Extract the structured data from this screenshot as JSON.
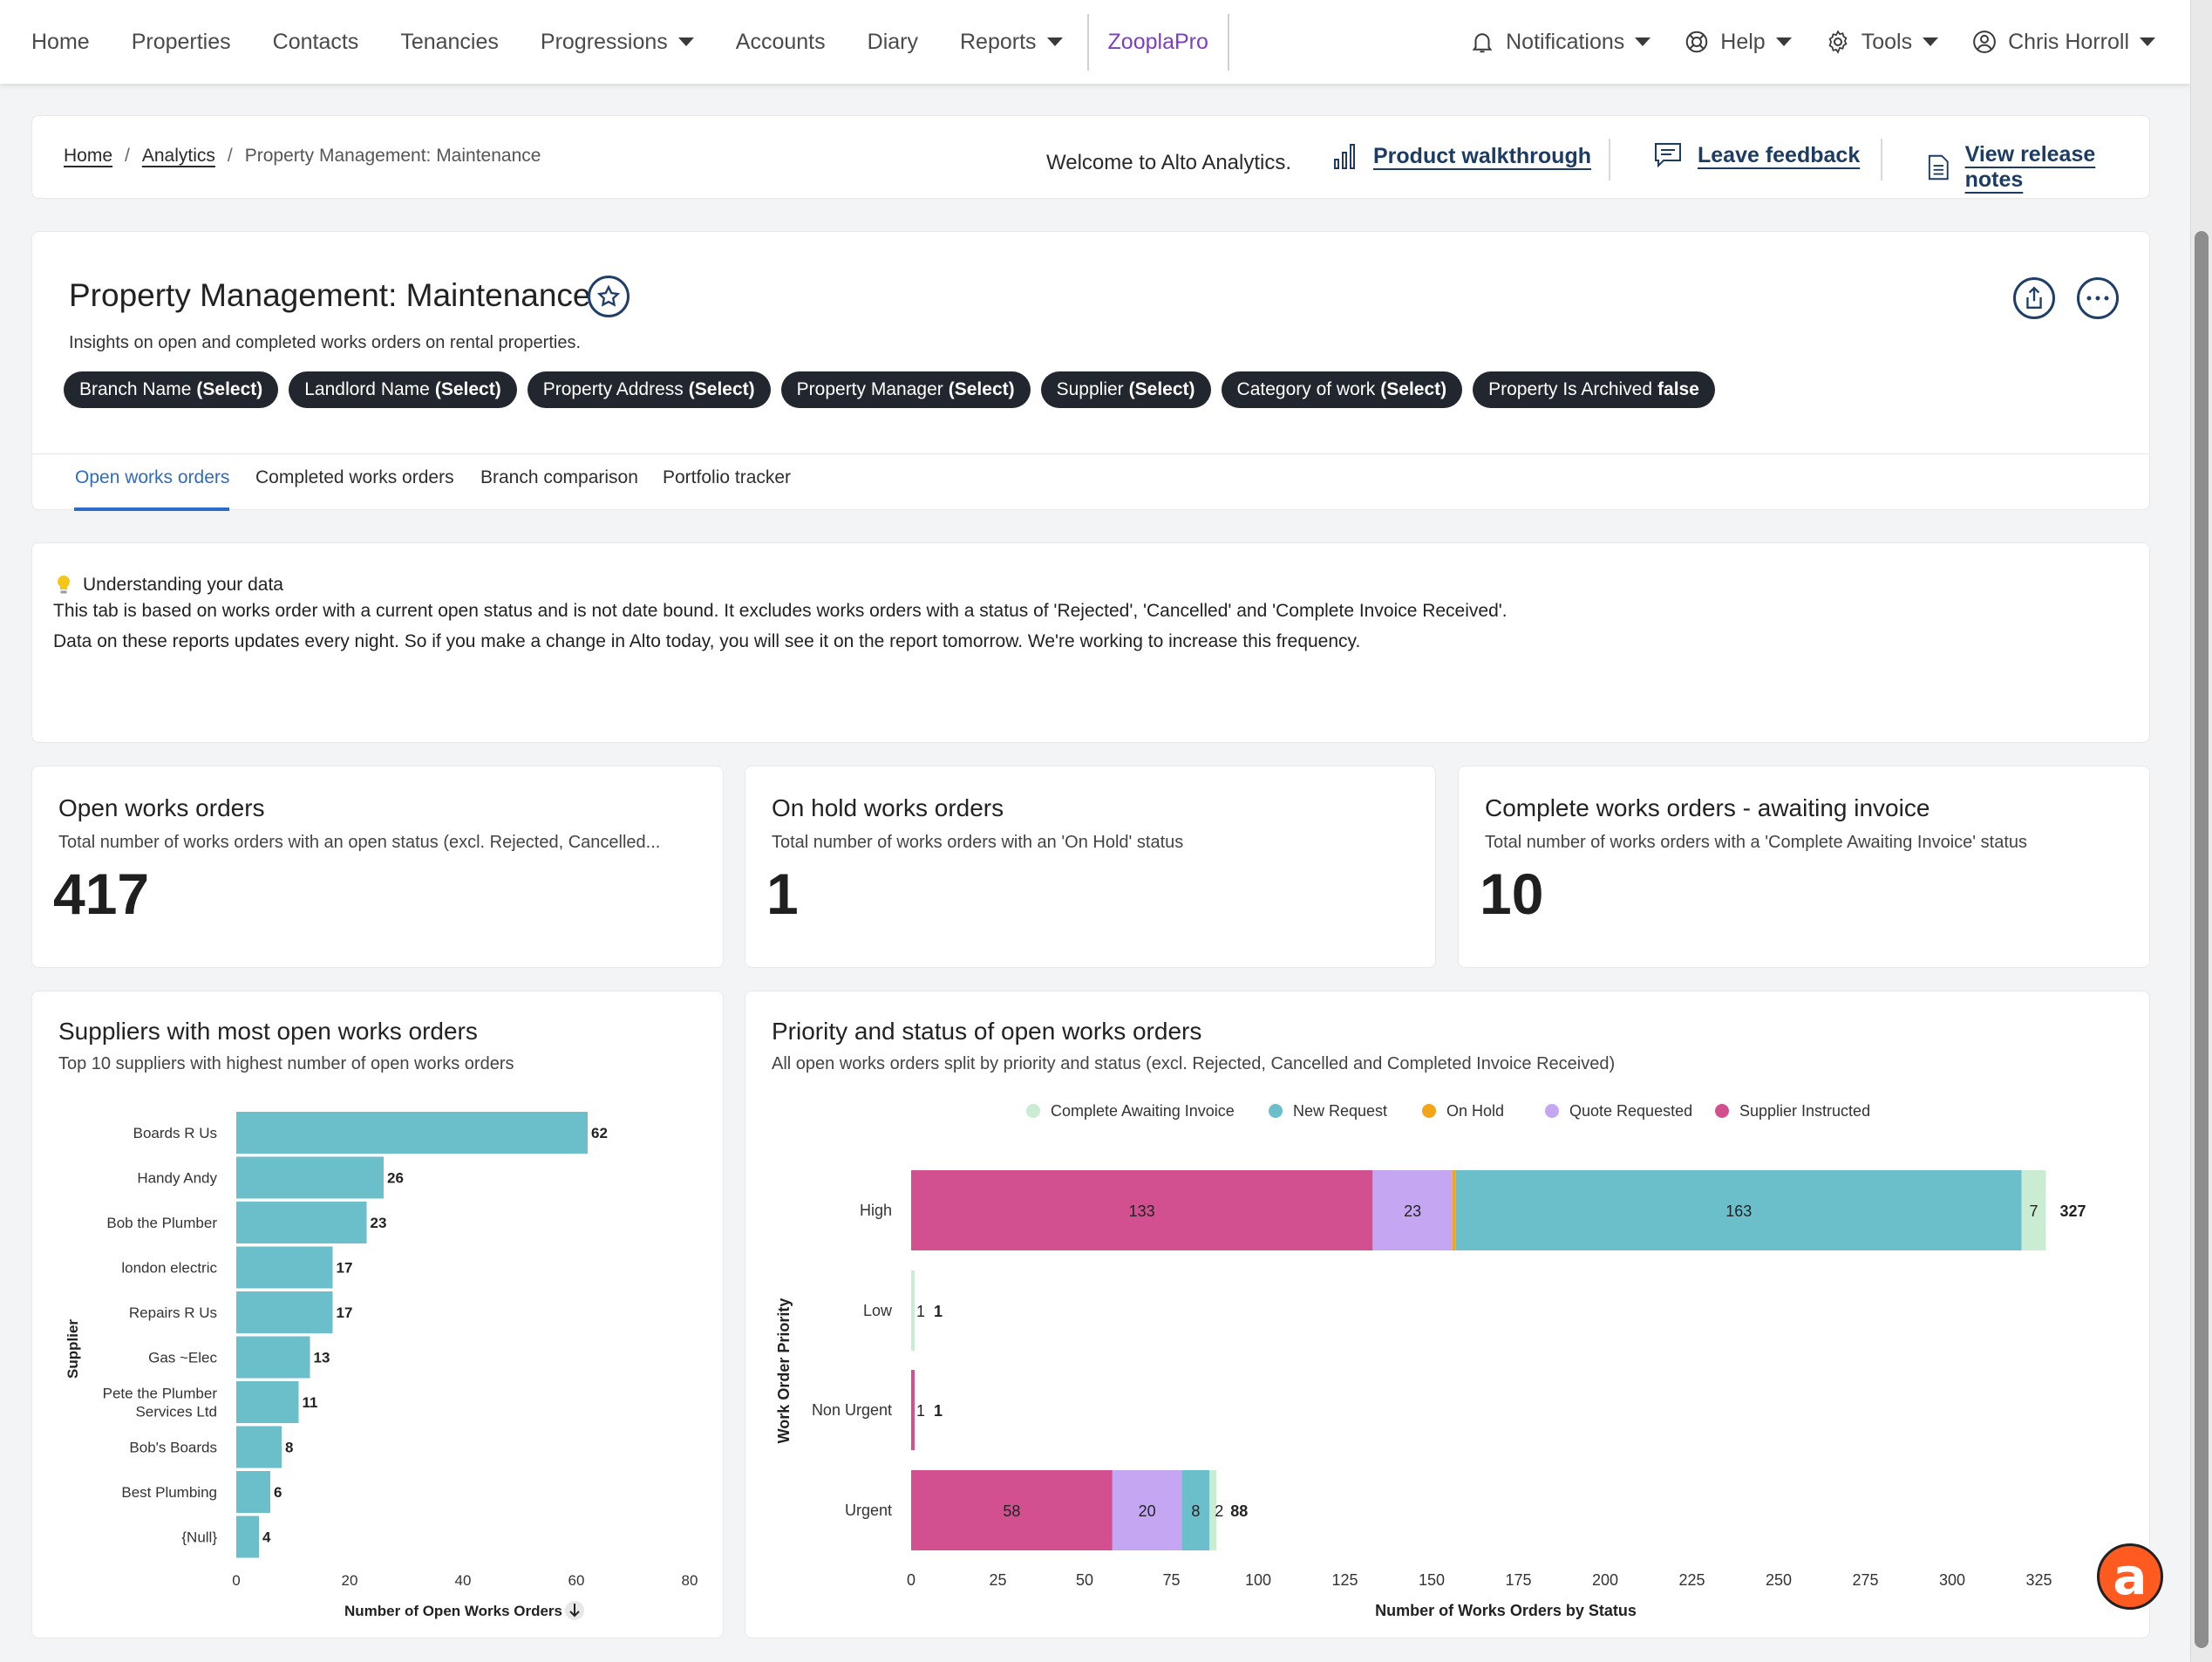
{
  "nav": {
    "items": [
      {
        "label": "Home",
        "caret": false
      },
      {
        "label": "Properties",
        "caret": false
      },
      {
        "label": "Contacts",
        "caret": false
      },
      {
        "label": "Tenancies",
        "caret": false
      },
      {
        "label": "Progressions",
        "caret": true
      },
      {
        "label": "Accounts",
        "caret": false
      },
      {
        "label": "Diary",
        "caret": false
      },
      {
        "label": "Reports",
        "caret": true
      }
    ],
    "zoopla": "ZooplaPro",
    "right": {
      "notifications": "Notifications",
      "help": "Help",
      "tools": "Tools",
      "user": "Chris Horroll"
    }
  },
  "breadcrumb": {
    "home": "Home",
    "analytics": "Analytics",
    "current": "Property Management: Maintenance"
  },
  "welcome": "Welcome to Alto Analytics.",
  "links": {
    "walkthrough": "Product walkthrough",
    "feedback": "Leave feedback",
    "release_notes": "View release notes"
  },
  "header": {
    "title": "Property Management: Maintenance",
    "subtitle": "Insights on open and completed works orders on rental properties."
  },
  "filters": [
    {
      "name": "Branch Name",
      "value": "(Select)"
    },
    {
      "name": "Landlord Name",
      "value": "(Select)"
    },
    {
      "name": "Property Address",
      "value": "(Select)"
    },
    {
      "name": "Property Manager",
      "value": "(Select)"
    },
    {
      "name": "Supplier",
      "value": "(Select)"
    },
    {
      "name": "Category of work",
      "value": "(Select)"
    },
    {
      "name": "Property Is Archived",
      "value": "false"
    }
  ],
  "tabs": [
    "Open works orders",
    "Completed works orders",
    "Branch comparison",
    "Portfolio tracker"
  ],
  "info": {
    "icon": "lightbulb-icon",
    "title": "Understanding your data",
    "line1": "This tab is based on works order with a current open status and is not date bound. It excludes works orders with a status of 'Rejected', 'Cancelled' and 'Complete Invoice Received'.",
    "line2": "Data on these reports updates every night. So if you make a change in Alto today, you will see it on the report tomorrow. We're working to increase this frequency."
  },
  "kpis": [
    {
      "title": "Open works orders",
      "desc": "Total number of works orders with an open status (excl. Rejected, Cancelled...",
      "value": "417"
    },
    {
      "title": "On hold works orders",
      "desc": "Total number of works orders with an 'On Hold' status",
      "value": "1"
    },
    {
      "title": "Complete works orders - awaiting invoice",
      "desc": "Total number of works orders with a 'Complete Awaiting Invoice' status",
      "value": "10"
    }
  ],
  "suppliers_chart": {
    "title": "Suppliers with most open works orders",
    "desc": "Top 10 suppliers with highest number of open works orders"
  },
  "priority_chart": {
    "title": "Priority and status of open works orders",
    "desc": "All open works orders split by priority and status (excl. Rejected, Cancelled and Completed Invoice Received)"
  },
  "colors": {
    "bar_teal": "#6bbfcb",
    "complete_awaiting": "#c9ecd2",
    "new_request": "#6bbfcb",
    "on_hold": "#f2a516",
    "quote_requested": "#c4a6f2",
    "supplier_instructed": "#d2508f",
    "link_blue": "#1d3c64",
    "tab_active": "#2e6bc4",
    "zoopla_purple": "#7a3fc2"
  },
  "chart_data": [
    {
      "type": "bar",
      "orientation": "horizontal",
      "categories": [
        "Boards R Us",
        "Handy Andy",
        "Bob the Plumber",
        "london electric",
        "Repairs R Us",
        "Gas ~Elec",
        "Pete the Plumber Services Ltd",
        "Bob's Boards",
        "Best Plumbing",
        "{Null}"
      ],
      "values": [
        62,
        26,
        23,
        17,
        17,
        13,
        11,
        8,
        6,
        4
      ],
      "xlabel": "Number of Open Works Orders",
      "ylabel": "Supplier",
      "xlim": [
        0,
        80
      ],
      "xticks": [
        0,
        20,
        40,
        60,
        80
      ]
    },
    {
      "type": "bar",
      "orientation": "horizontal",
      "stacked": true,
      "categories": [
        "High",
        "Low",
        "Non Urgent",
        "Urgent"
      ],
      "series": [
        {
          "name": "Supplier Instructed",
          "values": [
            133,
            0,
            1,
            58
          ]
        },
        {
          "name": "Quote Requested",
          "values": [
            23,
            0,
            0,
            20
          ]
        },
        {
          "name": "On Hold",
          "values": [
            1,
            0,
            0,
            0
          ]
        },
        {
          "name": "New Request",
          "values": [
            163,
            0,
            0,
            8
          ]
        },
        {
          "name": "Complete Awaiting Invoice",
          "values": [
            7,
            1,
            0,
            2
          ]
        }
      ],
      "legend_order": [
        "Complete Awaiting Invoice",
        "New Request",
        "On Hold",
        "Quote Requested",
        "Supplier Instructed"
      ],
      "totals": [
        327,
        1,
        1,
        88
      ],
      "xlabel": "Number of Works Orders by Status",
      "ylabel": "Work Order Priority",
      "xlim": [
        0,
        330
      ],
      "xticks": [
        0,
        25,
        50,
        75,
        100,
        125,
        150,
        175,
        200,
        225,
        250,
        275,
        300,
        325
      ],
      "legend_position": "top"
    }
  ]
}
